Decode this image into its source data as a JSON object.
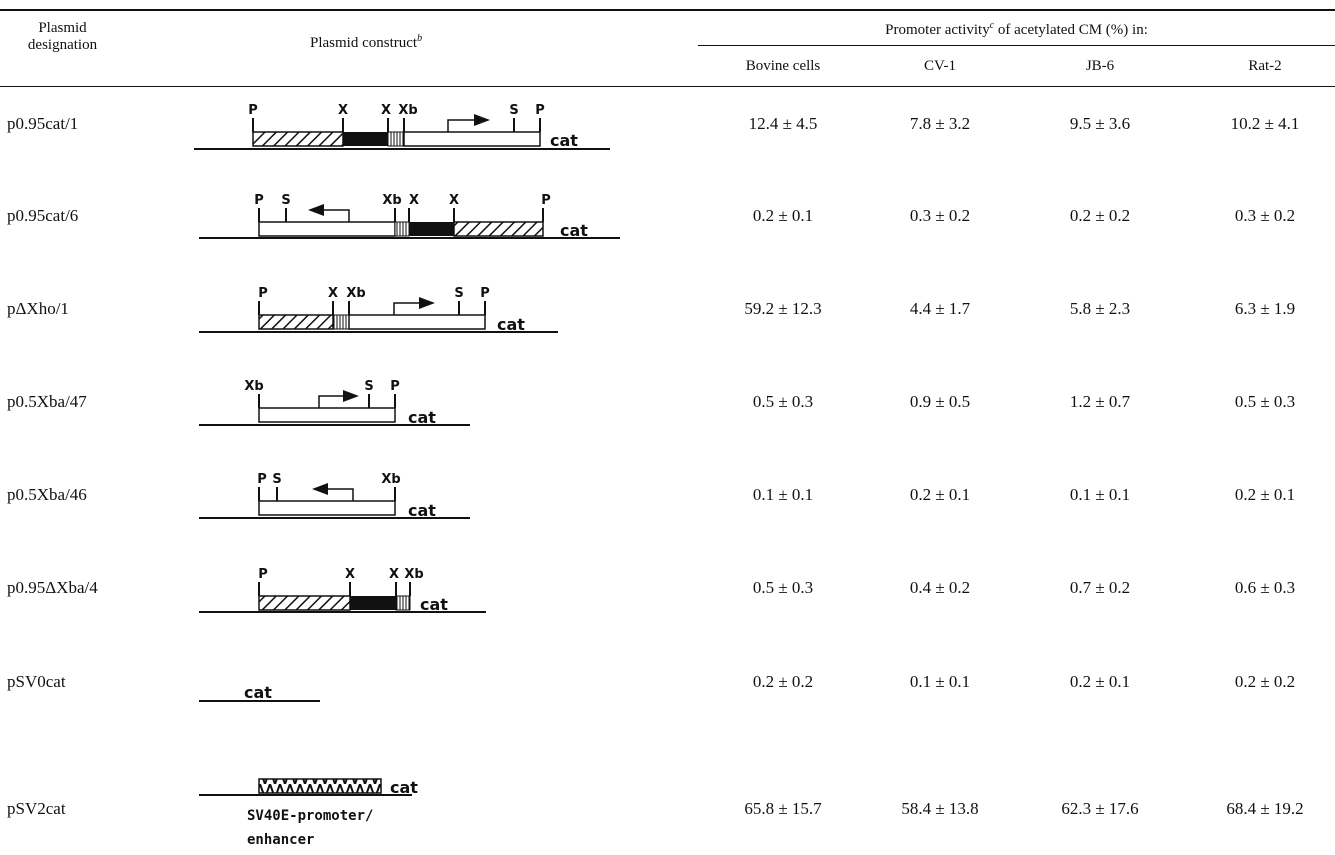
{
  "header": {
    "plasmid_designation": "Plasmid\ndesignation",
    "plasmid_construct": "Plasmid construct",
    "plasmid_construct_sup": "b",
    "promoter_activity_pre": "Promoter activity",
    "promoter_activity_sup": "c",
    "promoter_activity_post": " of acetylated CM (%) in:",
    "columns": [
      "Bovine cells",
      "CV-1",
      "JB-6",
      "Rat-2"
    ]
  },
  "rows": [
    {
      "name": "p0.95cat/1",
      "values": [
        "12.4 ± 4.5",
        "7.8 ± 3.2",
        "9.5 ± 3.6",
        "10.2 ± 4.1"
      ]
    },
    {
      "name": "p0.95cat/6",
      "values": [
        "0.2 ± 0.1",
        "0.3 ± 0.2",
        "0.2 ± 0.2",
        "0.3 ± 0.2"
      ]
    },
    {
      "name": "pΔXho/1",
      "values": [
        "59.2 ± 12.3",
        "4.4 ± 1.7",
        "5.8 ± 2.3",
        "6.3 ± 1.9"
      ]
    },
    {
      "name": "p0.5Xba/47",
      "values": [
        "0.5 ± 0.3",
        "0.9 ± 0.5",
        "1.2 ± 0.7",
        "0.5 ± 0.3"
      ]
    },
    {
      "name": "p0.5Xba/46",
      "values": [
        "0.1 ± 0.1",
        "0.2 ± 0.1",
        "0.1 ± 0.1",
        "0.2 ± 0.1"
      ]
    },
    {
      "name": "p0.95ΔXba/4",
      "values": [
        "0.5 ± 0.3",
        "0.4 ± 0.2",
        "0.7 ± 0.2",
        "0.6 ± 0.3"
      ]
    },
    {
      "name": "pSV0cat",
      "values": [
        "0.2 ± 0.2",
        "0.1 ± 0.1",
        "0.2 ± 0.1",
        "0.2 ± 0.2"
      ]
    },
    {
      "name": "pSV2cat",
      "values": [
        "65.8 ± 15.7",
        "58.4 ± 13.8",
        "62.3 ± 17.6",
        "68.4 ± 19.2"
      ]
    }
  ],
  "construct_labels": {
    "cat": "cat",
    "P": "P",
    "X": "X",
    "Xb": "Xb",
    "S": "S",
    "sv40_label": "SV40E-promoter/",
    "sv40_label2": "enhancer"
  }
}
